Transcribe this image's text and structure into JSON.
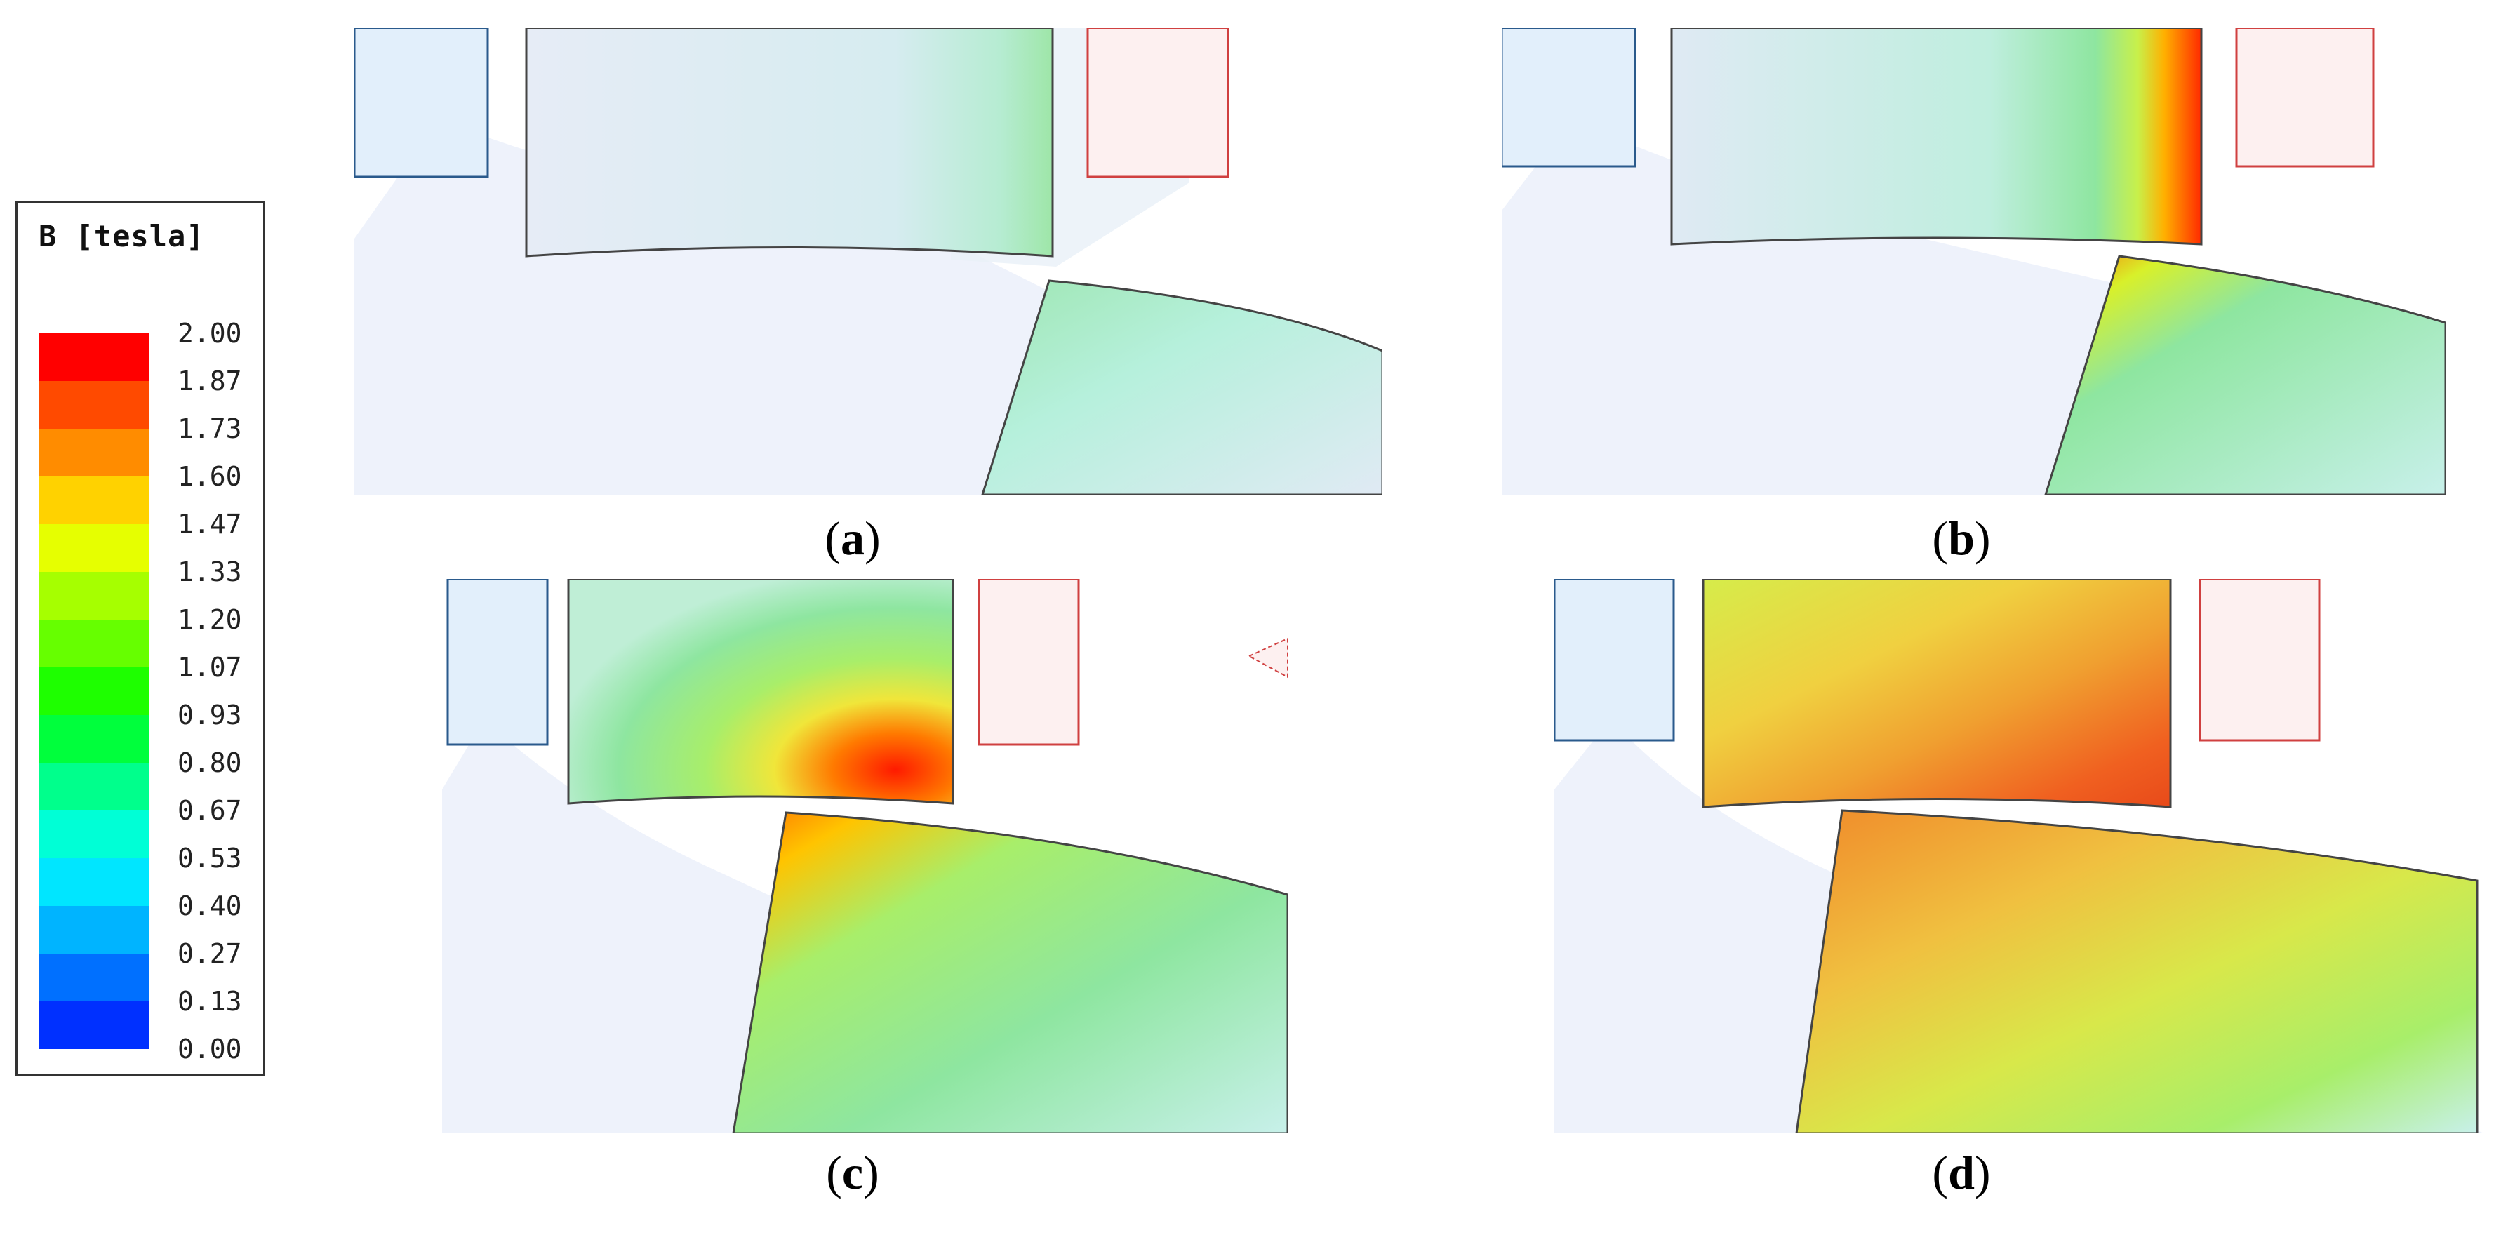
{
  "legend": {
    "title": "B [tesla]",
    "levels": [
      {
        "label": "2.00",
        "color": "#ff0000"
      },
      {
        "label": "1.87",
        "color": "#ff4a00"
      },
      {
        "label": "1.73",
        "color": "#ff8c00"
      },
      {
        "label": "1.60",
        "color": "#ffd200"
      },
      {
        "label": "1.47",
        "color": "#e6ff00"
      },
      {
        "label": "1.33",
        "color": "#a6ff00"
      },
      {
        "label": "1.20",
        "color": "#66ff00"
      },
      {
        "label": "1.07",
        "color": "#1eff00"
      },
      {
        "label": "0.93",
        "color": "#00ff3c"
      },
      {
        "label": "0.80",
        "color": "#00ff8c"
      },
      {
        "label": "0.67",
        "color": "#00ffd6"
      },
      {
        "label": "0.53",
        "color": "#00e6ff"
      },
      {
        "label": "0.40",
        "color": "#00b4ff"
      },
      {
        "label": "0.27",
        "color": "#0070ff"
      },
      {
        "label": "0.13",
        "color": "#0030ff"
      },
      {
        "label": "0.00",
        "color": ""
      }
    ]
  },
  "captions": {
    "a": {
      "open": "(",
      "letter": "a",
      "close": ")"
    },
    "b": {
      "open": "(",
      "letter": "b",
      "close": ")"
    },
    "c": {
      "open": "(",
      "letter": "c",
      "close": ")"
    },
    "d": {
      "open": "(",
      "letter": "d",
      "close": ")"
    }
  },
  "colors": {
    "coil_blue_fill": "#e2effb",
    "coil_blue_stroke": "#2a5a8c",
    "coil_red_fill": "#fdf0f0",
    "coil_red_stroke": "#d04040",
    "background_field": "#eef2fb"
  }
}
